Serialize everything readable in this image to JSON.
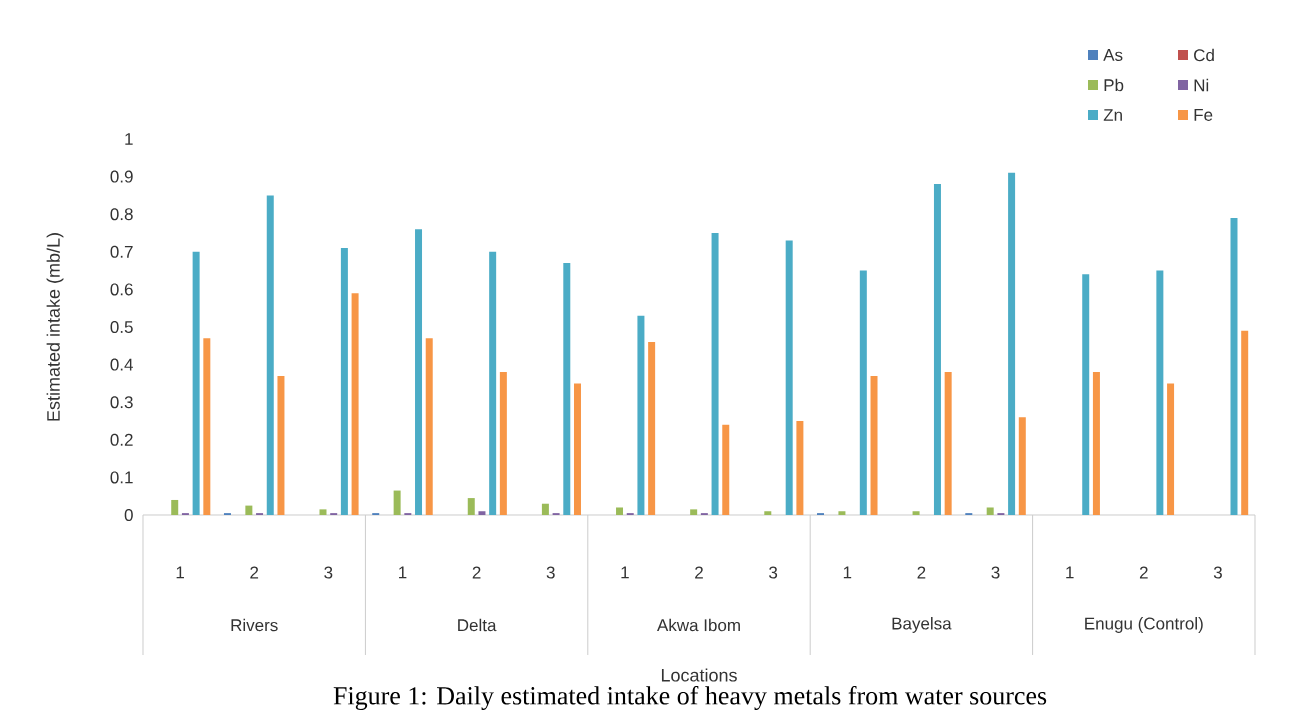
{
  "chart_data": {
    "type": "bar",
    "categories": [
      "1",
      "2",
      "3",
      "1",
      "2",
      "3",
      "1",
      "2",
      "3",
      "1",
      "2",
      "3",
      "1",
      "2",
      "3"
    ],
    "series": [
      {
        "name": "As",
        "color": "#4f81bd",
        "values": [
          null,
          0.005,
          null,
          0.005,
          null,
          null,
          null,
          null,
          null,
          0.005,
          null,
          0.005,
          null,
          null,
          null
        ]
      },
      {
        "name": "Cd",
        "color": "#c0504d",
        "values": [
          null,
          null,
          null,
          null,
          null,
          null,
          null,
          null,
          null,
          null,
          null,
          null,
          null,
          null,
          null
        ]
      },
      {
        "name": "Pb",
        "color": "#9bbb59",
        "values": [
          0.04,
          0.025,
          0.015,
          0.065,
          0.045,
          0.03,
          0.02,
          0.015,
          0.01,
          0.01,
          0.01,
          0.02,
          null,
          null,
          null
        ]
      },
      {
        "name": "Ni",
        "color": "#8064a2",
        "values": [
          0.005,
          0.005,
          0.005,
          0.005,
          0.01,
          0.005,
          0.005,
          0.005,
          null,
          null,
          null,
          0.005,
          null,
          null,
          null
        ]
      },
      {
        "name": "Zn",
        "color": "#4bacc6",
        "values": [
          0.7,
          0.85,
          0.71,
          0.76,
          0.7,
          0.67,
          0.53,
          0.75,
          0.73,
          0.65,
          0.88,
          0.91,
          0.64,
          0.65,
          0.79
        ]
      },
      {
        "name": "Fe",
        "color": "#f79646",
        "values": [
          0.47,
          0.37,
          0.59,
          0.47,
          0.38,
          0.35,
          0.46,
          0.24,
          0.25,
          0.37,
          0.38,
          0.26,
          0.38,
          0.35,
          0.49
        ]
      }
    ],
    "ylim": [
      0,
      1
    ],
    "yticks": [
      0,
      0.1,
      0.2,
      0.3,
      0.4,
      0.5,
      0.6,
      0.7,
      0.8,
      0.9,
      1
    ],
    "xlabel": "Locations",
    "ylabel": "Estimated intake (mb/L)",
    "legend": "top right",
    "annotations": [
      "Rivers",
      "Delta",
      "Akwa Ibom",
      "Bayelsa",
      "Enugu (Control)",
      "Figure 1: Daily estimated intake of heavy metals from water sources"
    ]
  }
}
